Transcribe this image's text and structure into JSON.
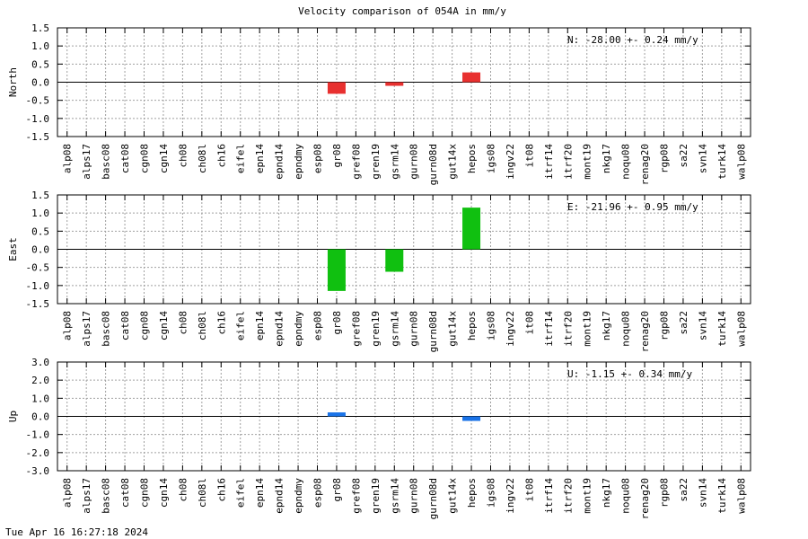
{
  "chart_data": {
    "type": "bar",
    "title": "Velocity comparison of 054A in mm/y",
    "categories": [
      "alp08",
      "alps17",
      "basc08",
      "cat08",
      "cgn08",
      "cgn14",
      "ch08",
      "ch08l",
      "ch16",
      "eifel",
      "epn14",
      "epnd14",
      "epndmy",
      "esp08",
      "gr08",
      "gref08",
      "gren19",
      "gsrm14",
      "gurn08",
      "gurn08d",
      "gut14x",
      "hepos",
      "igs08",
      "ingv22",
      "it08",
      "itrf14",
      "itrf20",
      "mont19",
      "nkg17",
      "noqu08",
      "renag20",
      "rgp08",
      "sa22",
      "svn14",
      "turk14",
      "walp08"
    ],
    "grid": true,
    "panels": [
      {
        "name": "North",
        "ylabel": "North",
        "ylim": [
          -1.5,
          1.5
        ],
        "yticks": [
          "1.5",
          "1.0",
          "0.5",
          "0.0",
          "-0.5",
          "-1.0",
          "-1.5"
        ],
        "annotation": "N: -28.00 +-  0.24 mm/y",
        "color": "#e8302f",
        "bars": [
          {
            "category": "gr08",
            "value": -0.32
          },
          {
            "category": "gsrm14",
            "value": -0.1
          },
          {
            "category": "hepos",
            "value": 0.27
          }
        ]
      },
      {
        "name": "East",
        "ylabel": "East",
        "ylim": [
          -1.5,
          1.5
        ],
        "yticks": [
          "1.5",
          "1.0",
          "0.5",
          "0.0",
          "-0.5",
          "-1.0",
          "-1.5"
        ],
        "annotation": "E: -21.96 +-  0.95 mm/y",
        "color": "#10c010",
        "bars": [
          {
            "category": "gr08",
            "value": -1.15
          },
          {
            "category": "gsrm14",
            "value": -0.62
          },
          {
            "category": "hepos",
            "value": 1.15
          }
        ]
      },
      {
        "name": "Up",
        "ylabel": "Up",
        "ylim": [
          -3.0,
          3.0
        ],
        "yticks": [
          "3.0",
          "2.0",
          "1.0",
          "0.0",
          "-1.0",
          "-2.0",
          "-3.0"
        ],
        "annotation": "U:  -1.15 +-  0.34 mm/y",
        "color": "#1a73e8",
        "bars": [
          {
            "category": "gr08",
            "value": 0.22
          },
          {
            "category": "hepos",
            "value": -0.25
          }
        ]
      }
    ]
  },
  "footer": {
    "timestamp": "Tue Apr 16 16:27:18 2024"
  }
}
